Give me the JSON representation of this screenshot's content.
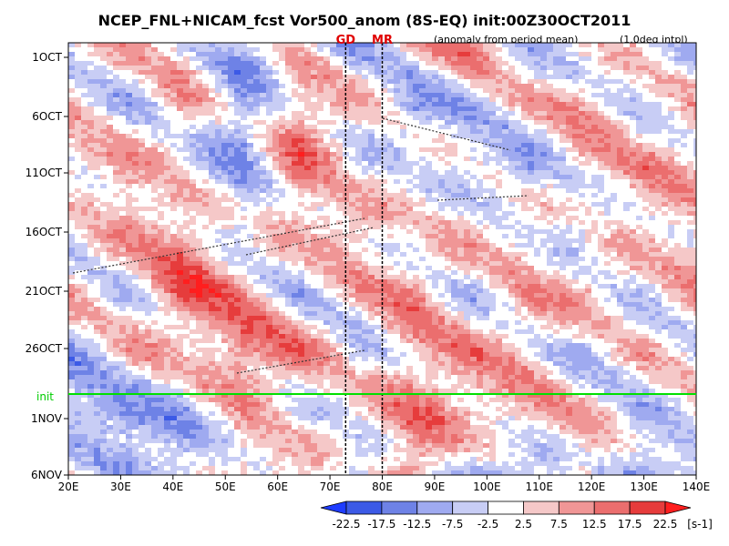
{
  "chart_data": {
    "type": "heatmap",
    "title": "NCEP_FNL+NICAM_fcst Vor500_anom (8S-EQ) init:00Z30OCT2011",
    "note_left": "(anomaly from period mean)",
    "note_right": "(1.0deg intpl)",
    "x_axis": {
      "ticks": [
        "20E",
        "30E",
        "40E",
        "50E",
        "60E",
        "70E",
        "80E",
        "90E",
        "100E",
        "110E",
        "120E",
        "130E",
        "140E"
      ],
      "range": [
        20,
        140
      ]
    },
    "y_axis": {
      "ticks": [
        "1OCT",
        "6OCT",
        "11OCT",
        "16OCT",
        "21OCT",
        "26OCT",
        "1NOV",
        "6NOV"
      ]
    },
    "init_label": "init",
    "init_line_color": "#00e000",
    "markers": [
      {
        "label": "GD",
        "lon": 73
      },
      {
        "label": "MR",
        "lon": 80
      }
    ],
    "colorbar": {
      "labels": [
        "-22.5",
        "-17.5",
        "-12.5",
        "-7.5",
        "-2.5",
        "2.5",
        "7.5",
        "12.5",
        "17.5",
        "22.5"
      ],
      "unit": "[s-1]",
      "colors": [
        "#1e3cff",
        "#3c5ae6",
        "#6e82e6",
        "#9faaf0",
        "#c8cdf5",
        "#ffffff",
        "#f5c8c8",
        "#f09696",
        "#eb6e6e",
        "#e63c3c",
        "#ff1e1e"
      ]
    },
    "values_approx": [
      [
        -2,
        5,
        3,
        -8,
        2,
        -10,
        6,
        12,
        -5,
        -3,
        2,
        -6
      ],
      [
        3,
        -6,
        8,
        -12,
        10,
        6,
        -14,
        -4,
        4,
        8,
        -3,
        5
      ],
      [
        6,
        9,
        -4,
        -9,
        14,
        -5,
        6,
        -7,
        -10,
        6,
        9,
        4
      ],
      [
        -5,
        8,
        12,
        -6,
        5,
        11,
        -4,
        7,
        3,
        -8,
        6,
        7
      ],
      [
        7,
        -3,
        18,
        10,
        -7,
        4,
        12,
        -5,
        6,
        9,
        -4,
        8
      ],
      [
        -9,
        6,
        3,
        15,
        14,
        -6,
        8,
        10,
        4,
        -7,
        5,
        -3
      ],
      [
        -12,
        -14,
        -6,
        5,
        -4,
        6,
        11,
        7,
        9,
        5,
        -6,
        4
      ],
      [
        5,
        -8,
        -10,
        6,
        8,
        -12,
        14,
        -9,
        -14,
        7,
        -11,
        -10
      ]
    ]
  }
}
